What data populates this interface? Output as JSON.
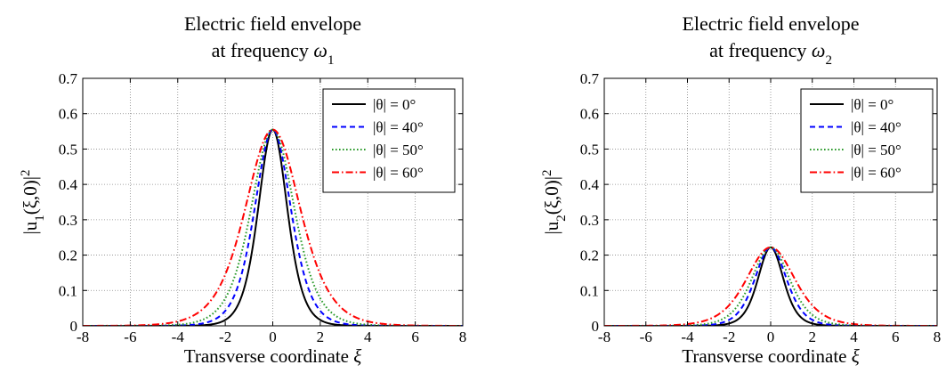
{
  "chart_data": [
    {
      "type": "line",
      "title": "Electric field envelope",
      "title_line2_prefix": "at frequency",
      "title_symbol": "ω",
      "title_symbol_sub": "1",
      "xlabel_text": "Transverse coordinate",
      "xlabel_symbol": "ξ",
      "ylabel_pre": "|u",
      "ylabel_sub": "1",
      "ylabel_post": "(ξ,0)|",
      "ylabel_sup": "2",
      "xlim": [
        -8,
        8
      ],
      "ylim": [
        0,
        0.7
      ],
      "xticks": [
        -8,
        -6,
        -4,
        -2,
        0,
        2,
        4,
        6,
        8
      ],
      "yticks": [
        0,
        0.1,
        0.2,
        0.3,
        0.4,
        0.5,
        0.6,
        0.7
      ],
      "grid": true,
      "legend_position": "top-right",
      "series": [
        {
          "name": "|θ| = 0°",
          "color": "#000000",
          "dash": "solid",
          "peak": 0.555,
          "halfwidth": 0.82,
          "x": [
            -6,
            -4,
            -3,
            -2,
            -1.5,
            -1,
            -0.5,
            0,
            0.5,
            1,
            1.5,
            2,
            3,
            4,
            6
          ],
          "y": [
            0.0,
            0.001,
            0.005,
            0.04,
            0.1,
            0.22,
            0.43,
            0.555,
            0.43,
            0.22,
            0.1,
            0.04,
            0.005,
            0.001,
            0.0
          ]
        },
        {
          "name": "|θ| = 40°",
          "color": "#0000ff",
          "dash": "dashed",
          "peak": 0.555,
          "halfwidth": 1.02,
          "x": [
            -6,
            -4,
            -3,
            -2,
            -1.5,
            -1,
            -0.5,
            0,
            0.5,
            1,
            1.5,
            2,
            3,
            4,
            6
          ],
          "y": [
            0.0,
            0.003,
            0.015,
            0.07,
            0.15,
            0.28,
            0.46,
            0.555,
            0.46,
            0.28,
            0.15,
            0.07,
            0.015,
            0.003,
            0.0
          ]
        },
        {
          "name": "|θ| = 50°",
          "color": "#2a9a2a",
          "dash": "dotted",
          "peak": 0.555,
          "halfwidth": 1.22,
          "x": [
            -6,
            -4,
            -3,
            -2,
            -1.5,
            -1,
            -0.5,
            0,
            0.5,
            1,
            1.5,
            2,
            3,
            4,
            6
          ],
          "y": [
            0.001,
            0.007,
            0.03,
            0.11,
            0.2,
            0.33,
            0.48,
            0.555,
            0.48,
            0.33,
            0.2,
            0.11,
            0.03,
            0.007,
            0.001
          ]
        },
        {
          "name": "|θ| = 60°",
          "color": "#ff0000",
          "dash": "dashdot",
          "peak": 0.555,
          "halfwidth": 1.55,
          "x": [
            -6,
            -4,
            -3,
            -2,
            -1.5,
            -1,
            -0.5,
            0,
            0.5,
            1,
            1.5,
            2,
            3,
            4,
            6
          ],
          "y": [
            0.003,
            0.02,
            0.06,
            0.16,
            0.26,
            0.38,
            0.5,
            0.555,
            0.5,
            0.38,
            0.26,
            0.16,
            0.06,
            0.02,
            0.003
          ]
        }
      ]
    },
    {
      "type": "line",
      "title": "Electric field envelope",
      "title_line2_prefix": "at frequency",
      "title_symbol": "ω",
      "title_symbol_sub": "2",
      "xlabel_text": "Transverse coordinate",
      "xlabel_symbol": "ξ",
      "ylabel_pre": "|u",
      "ylabel_sub": "2",
      "ylabel_post": "(ξ,0)|",
      "ylabel_sup": "2",
      "xlim": [
        -8,
        8
      ],
      "ylim": [
        0,
        0.7
      ],
      "xticks": [
        -8,
        -6,
        -4,
        -2,
        0,
        2,
        4,
        6,
        8
      ],
      "yticks": [
        0,
        0.1,
        0.2,
        0.3,
        0.4,
        0.5,
        0.6,
        0.7
      ],
      "grid": true,
      "legend_position": "top-right",
      "series": [
        {
          "name": "|θ| = 0°",
          "color": "#000000",
          "dash": "solid",
          "peak": 0.222,
          "halfwidth": 0.82,
          "x": [
            -6,
            -4,
            -3,
            -2,
            -1.5,
            -1,
            -0.5,
            0,
            0.5,
            1,
            1.5,
            2,
            3,
            4,
            6
          ],
          "y": [
            0.0,
            0.0,
            0.002,
            0.016,
            0.04,
            0.09,
            0.17,
            0.222,
            0.17,
            0.09,
            0.04,
            0.016,
            0.002,
            0.0,
            0.0
          ]
        },
        {
          "name": "|θ| = 40°",
          "color": "#0000ff",
          "dash": "dashed",
          "peak": 0.222,
          "halfwidth": 1.02,
          "x": [
            -6,
            -4,
            -3,
            -2,
            -1.5,
            -1,
            -0.5,
            0,
            0.5,
            1,
            1.5,
            2,
            3,
            4,
            6
          ],
          "y": [
            0.0,
            0.001,
            0.006,
            0.028,
            0.06,
            0.11,
            0.18,
            0.222,
            0.18,
            0.11,
            0.06,
            0.028,
            0.006,
            0.001,
            0.0
          ]
        },
        {
          "name": "|θ| = 50°",
          "color": "#2a9a2a",
          "dash": "dotted",
          "peak": 0.222,
          "halfwidth": 1.22,
          "x": [
            -6,
            -4,
            -3,
            -2,
            -1.5,
            -1,
            -0.5,
            0,
            0.5,
            1,
            1.5,
            2,
            3,
            4,
            6
          ],
          "y": [
            0.0,
            0.003,
            0.012,
            0.044,
            0.08,
            0.13,
            0.19,
            0.222,
            0.19,
            0.13,
            0.08,
            0.044,
            0.012,
            0.003,
            0.0
          ]
        },
        {
          "name": "|θ| = 60°",
          "color": "#ff0000",
          "dash": "dashdot",
          "peak": 0.222,
          "halfwidth": 1.55,
          "x": [
            -6,
            -4,
            -3,
            -2,
            -1.5,
            -1,
            -0.5,
            0,
            0.5,
            1,
            1.5,
            2,
            3,
            4,
            6
          ],
          "y": [
            0.001,
            0.008,
            0.024,
            0.064,
            0.1,
            0.15,
            0.2,
            0.222,
            0.2,
            0.15,
            0.1,
            0.064,
            0.024,
            0.008,
            0.001
          ]
        }
      ]
    }
  ]
}
